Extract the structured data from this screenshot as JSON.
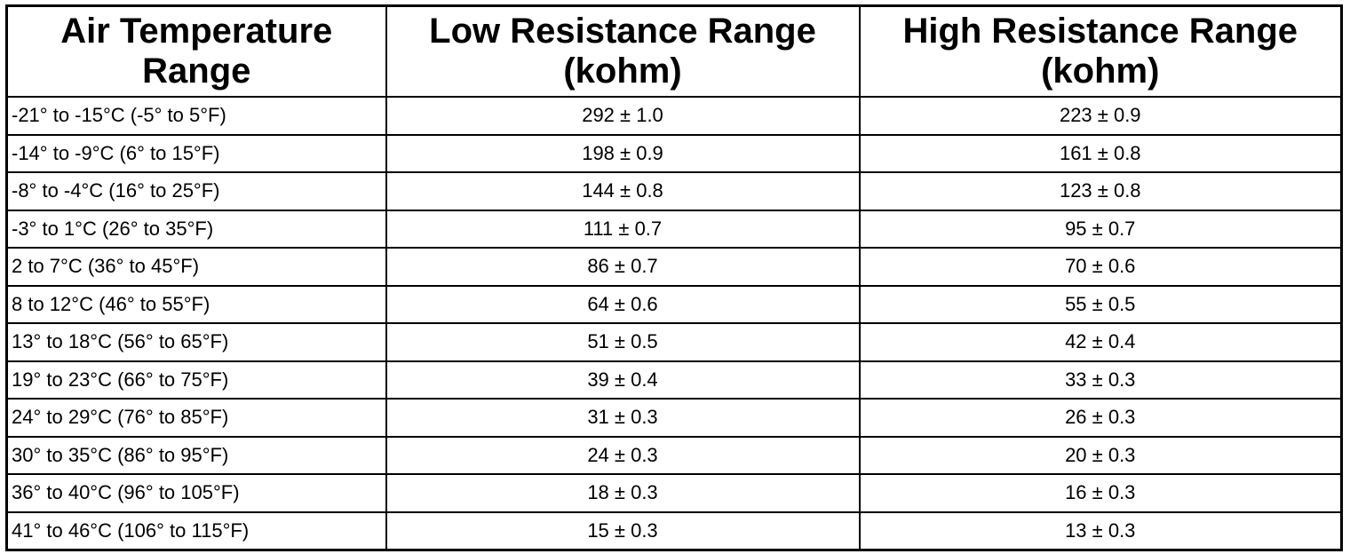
{
  "table": {
    "header": [
      "Air Temperature Range",
      "Low Resistance Range (kohm)",
      "High Resistance Range (kohm)"
    ],
    "rows": [
      [
        "-21° to -15°C (-5° to 5°F)",
        "292 ± 1.0",
        "223 ± 0.9"
      ],
      [
        "-14° to -9°C (6° to 15°F)",
        "198 ± 0.9",
        "161 ± 0.8"
      ],
      [
        "-8° to -4°C (16° to 25°F)",
        "144 ± 0.8",
        "123 ± 0.8"
      ],
      [
        "-3° to 1°C (26° to 35°F)",
        "111 ± 0.7",
        "95 ± 0.7"
      ],
      [
        "2 to 7°C (36° to 45°F)",
        "86 ± 0.7",
        "70 ± 0.6"
      ],
      [
        "8 to 12°C (46° to 55°F)",
        "64 ± 0.6",
        "55 ± 0.5"
      ],
      [
        "13° to 18°C (56° to 65°F)",
        "51 ± 0.5",
        "42 ± 0.4"
      ],
      [
        "19° to 23°C (66° to 75°F)",
        "39 ± 0.4",
        "33 ± 0.3"
      ],
      [
        "24° to 29°C (76° to 85°F)",
        "31 ± 0.3",
        "26 ± 0.3"
      ],
      [
        "30° to 35°C (86° to 95°F)",
        "24 ± 0.3",
        "20 ± 0.3"
      ],
      [
        "36° to 40°C (96° to 105°F)",
        "18 ± 0.3",
        "16 ± 0.3"
      ],
      [
        "41° to 46°C (106° to 115°F)",
        "15 ± 0.3",
        "13 ± 0.3"
      ]
    ]
  }
}
